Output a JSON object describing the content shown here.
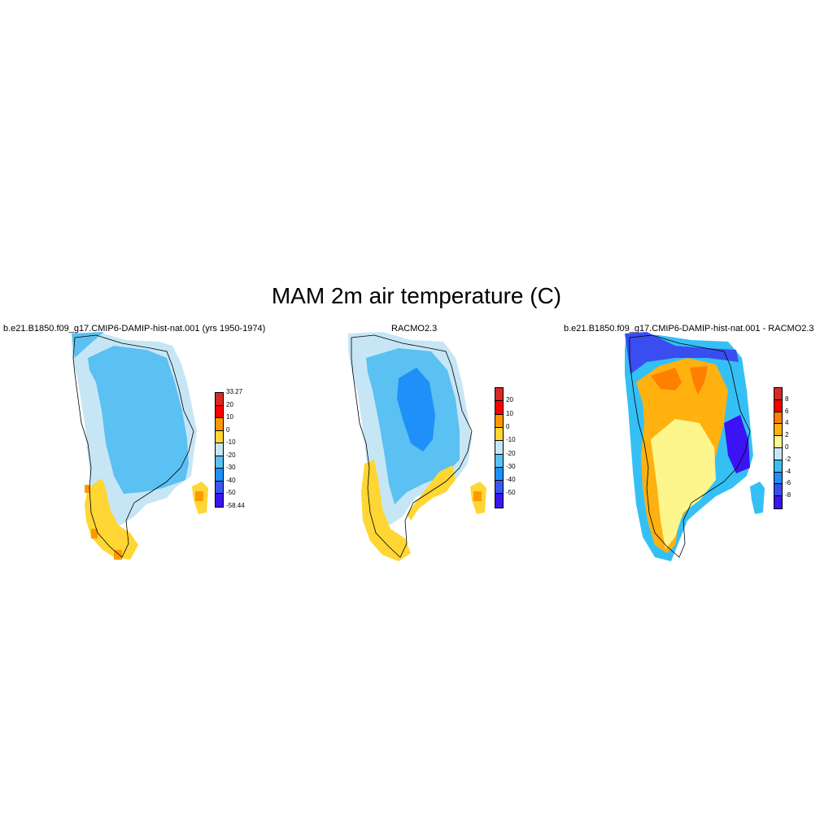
{
  "title": "MAM 2m air temperature (C)",
  "panels": [
    {
      "id": "model",
      "title": "b.e21.B1850.f09_g17.CMIP6-DAMIP-hist-nat.001 (yrs 1950-1974)",
      "colorbar": {
        "labels": [
          "33.27",
          "20",
          "10",
          "0",
          "-10",
          "-20",
          "-30",
          "-40",
          "-50",
          "-58.44"
        ],
        "colors": [
          "#d62a27",
          "#ff0000",
          "#ff9900",
          "#ffd633",
          "#c6e6f6",
          "#5bc0f2",
          "#1e90f8",
          "#3a58f0",
          "#3c13f4"
        ]
      }
    },
    {
      "id": "obs",
      "title": "RACMO2.3",
      "colorbar": {
        "labels": [
          "20",
          "10",
          "0",
          "-10",
          "-20",
          "-30",
          "-40",
          "-50"
        ],
        "colors": [
          "#d62a27",
          "#ff0000",
          "#ff9900",
          "#ffd633",
          "#c6e6f6",
          "#5bc0f2",
          "#1e90f8",
          "#3a58f0",
          "#3c13f4"
        ]
      }
    },
    {
      "id": "diff",
      "title": "b.e21.B1850.f09_g17.CMIP6-DAMIP-hist-nat.001 - RACMO2.3",
      "colorbar": {
        "labels": [
          "8",
          "6",
          "4",
          "2",
          "0",
          "-2",
          "-4",
          "-6",
          "-8"
        ],
        "colors": [
          "#d62a27",
          "#ff0000",
          "#ff7f00",
          "#ffb10f",
          "#fdf68c",
          "#c6e6f6",
          "#35c0f5",
          "#1e8ff9",
          "#3a4df0",
          "#3c13f4"
        ]
      }
    }
  ]
}
